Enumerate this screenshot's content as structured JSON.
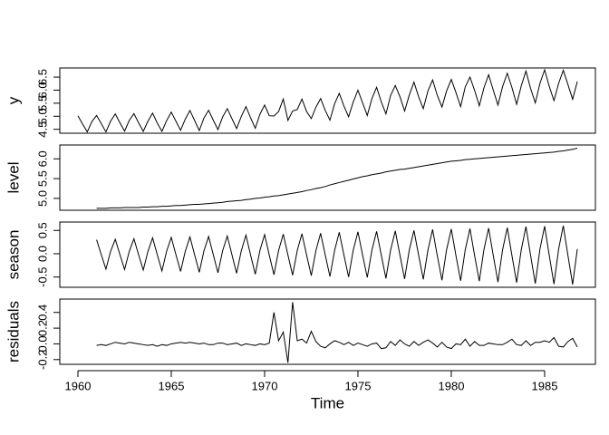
{
  "chart_data": [
    {
      "type": "line",
      "ylabel": "y",
      "color": "#000000",
      "xlim": [
        1959.03,
        1987.72
      ],
      "ylim": [
        4.35,
        6.85
      ],
      "yticks": [
        4.5,
        {
          "value": 5,
          "label": "5.0"
        },
        5.5,
        {
          "value": 6,
          "label": "6.0"
        },
        6.5
      ],
      "x": [
        1960,
        1960.25,
        1960.5,
        1960.75,
        1961,
        1961.25,
        1961.5,
        1961.75,
        1962,
        1962.25,
        1962.5,
        1962.75,
        1963,
        1963.25,
        1963.5,
        1963.75,
        1964,
        1964.25,
        1964.5,
        1964.75,
        1965,
        1965.25,
        1965.5,
        1965.75,
        1966,
        1966.25,
        1966.5,
        1966.75,
        1967,
        1967.25,
        1967.5,
        1967.75,
        1968,
        1968.25,
        1968.5,
        1968.75,
        1969,
        1969.25,
        1969.5,
        1969.75,
        1970,
        1970.25,
        1970.5,
        1970.75,
        1971,
        1971.25,
        1971.5,
        1971.75,
        1972,
        1972.25,
        1972.5,
        1972.75,
        1973,
        1973.25,
        1973.5,
        1973.75,
        1974,
        1974.25,
        1974.5,
        1974.75,
        1975,
        1975.25,
        1975.5,
        1975.75,
        1976,
        1976.25,
        1976.5,
        1976.75,
        1977,
        1977.25,
        1977.5,
        1977.75,
        1978,
        1978.25,
        1978.5,
        1978.75,
        1979,
        1979.25,
        1979.5,
        1979.75,
        1980,
        1980.25,
        1980.5,
        1980.75,
        1981,
        1981.25,
        1981.5,
        1981.75,
        1982,
        1982.25,
        1982.5,
        1982.75,
        1983,
        1983.25,
        1983.5,
        1983.75,
        1984,
        1984.25,
        1984.5,
        1984.75,
        1985,
        1985.25,
        1985.5,
        1985.75,
        1986,
        1986.25,
        1986.5,
        1986.75
      ],
      "values": [
        5.02,
        4.7,
        4.4,
        4.8,
        5.03,
        4.72,
        4.4,
        4.81,
        5.09,
        4.75,
        4.43,
        4.84,
        5.1,
        4.75,
        4.42,
        4.81,
        5.12,
        4.74,
        4.42,
        4.83,
        5.16,
        4.81,
        4.46,
        4.89,
        5.22,
        4.84,
        4.45,
        4.93,
        5.23,
        4.85,
        4.49,
        4.97,
        5.29,
        4.91,
        4.53,
        4.99,
        5.37,
        4.94,
        4.54,
        5.08,
        5.43,
        5.02,
        5.01,
        5.18,
        5.66,
        4.84,
        5.2,
        5.26,
        5.66,
        5.18,
        4.91,
        5.35,
        5.68,
        5.22,
        4.85,
        5.48,
        5.88,
        5.39,
        4.98,
        5.55,
        6.0,
        5.51,
        5.03,
        5.68,
        6.11,
        5.55,
        5.09,
        5.8,
        6.18,
        5.75,
        5.2,
        5.81,
        6.31,
        5.75,
        5.29,
        5.97,
        6.39,
        5.8,
        5.35,
        5.97,
        6.41,
        5.91,
        5.37,
        6.13,
        6.5,
        5.99,
        5.4,
        6.09,
        6.59,
        6.0,
        5.43,
        6.14,
        6.65,
        6.1,
        5.46,
        6.17,
        6.73,
        6.06,
        5.51,
        6.26,
        6.78,
        6.14,
        5.6,
        6.26,
        6.76,
        6.21,
        5.65,
        6.33
      ]
    },
    {
      "type": "line",
      "ylabel": "level",
      "color": "#000000",
      "xlim": [
        1959.03,
        1987.72
      ],
      "ylim": [
        4.7,
        6.35
      ],
      "yticks": [
        {
          "value": 5,
          "label": "5.0"
        },
        5.5,
        {
          "value": 6,
          "label": "6.0"
        }
      ],
      "x": [
        1961,
        1961.25,
        1961.5,
        1961.75,
        1962,
        1962.25,
        1962.5,
        1962.75,
        1963,
        1963.25,
        1963.5,
        1963.75,
        1964,
        1964.25,
        1964.5,
        1964.75,
        1965,
        1965.25,
        1965.5,
        1965.75,
        1966,
        1966.25,
        1966.5,
        1966.75,
        1967,
        1967.25,
        1967.5,
        1967.75,
        1968,
        1968.25,
        1968.5,
        1968.75,
        1969,
        1969.25,
        1969.5,
        1969.75,
        1970,
        1970.25,
        1970.5,
        1970.75,
        1971,
        1971.25,
        1971.5,
        1971.75,
        1972,
        1972.25,
        1972.5,
        1972.75,
        1973,
        1973.25,
        1973.5,
        1973.75,
        1974,
        1974.25,
        1974.5,
        1974.75,
        1975,
        1975.25,
        1975.5,
        1975.75,
        1976,
        1976.25,
        1976.5,
        1976.75,
        1977,
        1977.25,
        1977.5,
        1977.75,
        1978,
        1978.25,
        1978.5,
        1978.75,
        1979,
        1979.25,
        1979.5,
        1979.75,
        1980,
        1980.25,
        1980.5,
        1980.75,
        1981,
        1981.25,
        1981.5,
        1981.75,
        1982,
        1982.25,
        1982.5,
        1982.75,
        1983,
        1983.25,
        1983.5,
        1983.75,
        1984,
        1984.25,
        1984.5,
        1984.75,
        1985,
        1985.25,
        1985.5,
        1985.75,
        1986,
        1986.25,
        1986.5,
        1986.75
      ],
      "values": [
        4.75,
        4.75,
        4.75,
        4.76,
        4.76,
        4.76,
        4.77,
        4.77,
        4.77,
        4.77,
        4.78,
        4.78,
        4.79,
        4.79,
        4.8,
        4.8,
        4.81,
        4.82,
        4.82,
        4.83,
        4.84,
        4.85,
        4.85,
        4.86,
        4.87,
        4.88,
        4.89,
        4.9,
        4.92,
        4.93,
        4.94,
        4.95,
        4.97,
        4.98,
        5.0,
        5.01,
        5.03,
        5.04,
        5.06,
        5.07,
        5.09,
        5.11,
        5.13,
        5.15,
        5.17,
        5.2,
        5.22,
        5.25,
        5.27,
        5.3,
        5.34,
        5.37,
        5.4,
        5.43,
        5.46,
        5.49,
        5.52,
        5.55,
        5.57,
        5.6,
        5.62,
        5.64,
        5.67,
        5.69,
        5.71,
        5.73,
        5.74,
        5.76,
        5.78,
        5.8,
        5.82,
        5.84,
        5.86,
        5.88,
        5.9,
        5.92,
        5.94,
        5.95,
        5.96,
        5.98,
        5.99,
        6.0,
        6.01,
        6.02,
        6.03,
        6.04,
        6.05,
        6.06,
        6.07,
        6.08,
        6.09,
        6.1,
        6.11,
        6.12,
        6.13,
        6.14,
        6.15,
        6.16,
        6.17,
        6.19,
        6.2,
        6.22,
        6.24,
        6.27
      ]
    },
    {
      "type": "line",
      "ylabel": "season",
      "color": "#000000",
      "xlim": [
        1959.03,
        1987.72
      ],
      "ylim": [
        -0.72,
        0.68
      ],
      "yticks": [
        -0.5,
        {
          "value": 0,
          "label": "0.0"
        },
        0.5
      ],
      "x": [
        1961,
        1961.25,
        1961.5,
        1961.75,
        1962,
        1962.25,
        1962.5,
        1962.75,
        1963,
        1963.25,
        1963.5,
        1963.75,
        1964,
        1964.25,
        1964.5,
        1964.75,
        1965,
        1965.25,
        1965.5,
        1965.75,
        1966,
        1966.25,
        1966.5,
        1966.75,
        1967,
        1967.25,
        1967.5,
        1967.75,
        1968,
        1968.25,
        1968.5,
        1968.75,
        1969,
        1969.25,
        1969.5,
        1969.75,
        1970,
        1970.25,
        1970.5,
        1970.75,
        1971,
        1971.25,
        1971.5,
        1971.75,
        1972,
        1972.25,
        1972.5,
        1972.75,
        1973,
        1973.25,
        1973.5,
        1973.75,
        1974,
        1974.25,
        1974.5,
        1974.75,
        1975,
        1975.25,
        1975.5,
        1975.75,
        1976,
        1976.25,
        1976.5,
        1976.75,
        1977,
        1977.25,
        1977.5,
        1977.75,
        1978,
        1978.25,
        1978.5,
        1978.75,
        1979,
        1979.25,
        1979.5,
        1979.75,
        1980,
        1980.25,
        1980.5,
        1980.75,
        1981,
        1981.25,
        1981.5,
        1981.75,
        1982,
        1982.25,
        1982.5,
        1982.75,
        1983,
        1983.25,
        1983.5,
        1983.75,
        1984,
        1984.25,
        1984.5,
        1984.75,
        1985,
        1985.25,
        1985.5,
        1985.75,
        1986,
        1986.25,
        1986.5,
        1986.75
      ],
      "values": [
        0.3,
        -0.02,
        -0.33,
        0.05,
        0.31,
        -0.02,
        -0.34,
        0.05,
        0.32,
        -0.02,
        -0.35,
        0.05,
        0.34,
        -0.02,
        -0.37,
        0.05,
        0.35,
        -0.02,
        -0.38,
        0.05,
        0.36,
        -0.02,
        -0.4,
        0.06,
        0.37,
        -0.02,
        -0.41,
        0.06,
        0.38,
        -0.02,
        -0.42,
        0.06,
        0.4,
        -0.03,
        -0.44,
        0.07,
        0.41,
        -0.03,
        -0.45,
        0.07,
        0.42,
        -0.03,
        -0.46,
        0.07,
        0.43,
        -0.03,
        -0.47,
        0.07,
        0.44,
        -0.03,
        -0.49,
        0.07,
        0.46,
        -0.03,
        -0.5,
        0.08,
        0.47,
        -0.03,
        -0.51,
        0.08,
        0.48,
        -0.03,
        -0.53,
        0.08,
        0.49,
        -0.03,
        -0.54,
        0.08,
        0.5,
        -0.03,
        -0.55,
        0.08,
        0.52,
        -0.04,
        -0.57,
        0.09,
        0.53,
        -0.04,
        -0.58,
        0.09,
        0.54,
        -0.04,
        -0.59,
        0.09,
        0.55,
        -0.04,
        -0.61,
        0.09,
        0.56,
        -0.04,
        -0.62,
        0.09,
        0.58,
        -0.04,
        -0.64,
        0.1,
        0.59,
        -0.04,
        -0.65,
        0.1,
        0.6,
        -0.04,
        -0.66,
        0.1
      ]
    },
    {
      "type": "line",
      "ylabel": "residuals",
      "xlabel": "Time",
      "color": "#000000",
      "xlim": [
        1959.03,
        1987.72
      ],
      "ylim": [
        -0.26,
        0.57
      ],
      "yticks": [
        -0.2,
        {
          "value": 0,
          "label": "0.0"
        },
        0.2,
        0.4
      ],
      "xticks": [
        1960,
        1965,
        1970,
        1975,
        1980,
        1985
      ],
      "x": [
        1961,
        1961.25,
        1961.5,
        1961.75,
        1962,
        1962.25,
        1962.5,
        1962.75,
        1963,
        1963.25,
        1963.5,
        1963.75,
        1964,
        1964.25,
        1964.5,
        1964.75,
        1965,
        1965.25,
        1965.5,
        1965.75,
        1966,
        1966.25,
        1966.5,
        1966.75,
        1967,
        1967.25,
        1967.5,
        1967.75,
        1968,
        1968.25,
        1968.5,
        1968.75,
        1969,
        1969.25,
        1969.5,
        1969.75,
        1970,
        1970.25,
        1970.5,
        1970.75,
        1971,
        1971.25,
        1971.5,
        1971.75,
        1972,
        1972.25,
        1972.5,
        1972.75,
        1973,
        1973.25,
        1973.5,
        1973.75,
        1974,
        1974.25,
        1974.5,
        1974.75,
        1975,
        1975.25,
        1975.5,
        1975.75,
        1976,
        1976.25,
        1976.5,
        1976.75,
        1977,
        1977.25,
        1977.5,
        1977.75,
        1978,
        1978.25,
        1978.5,
        1978.75,
        1979,
        1979.25,
        1979.5,
        1979.75,
        1980,
        1980.25,
        1980.5,
        1980.75,
        1981,
        1981.25,
        1981.5,
        1981.75,
        1982,
        1982.25,
        1982.5,
        1982.75,
        1983,
        1983.25,
        1983.5,
        1983.75,
        1984,
        1984.25,
        1984.5,
        1984.75,
        1985,
        1985.25,
        1985.5,
        1985.75,
        1986,
        1986.25,
        1986.5,
        1986.75
      ],
      "values": [
        -0.02,
        -0.01,
        -0.02,
        0.0,
        0.02,
        0.01,
        0.0,
        0.02,
        0.01,
        0.0,
        -0.01,
        -0.02,
        -0.01,
        -0.03,
        -0.01,
        -0.02,
        0.0,
        0.01,
        0.02,
        0.01,
        0.02,
        0.01,
        0.0,
        0.01,
        -0.01,
        -0.01,
        0.01,
        0.01,
        -0.01,
        0.0,
        0.01,
        -0.02,
        0.0,
        -0.01,
        -0.02,
        0.0,
        -0.01,
        0.01,
        0.4,
        0.04,
        0.15,
        -0.24,
        0.53,
        0.04,
        0.06,
        0.01,
        0.16,
        0.03,
        -0.03,
        -0.05,
        0.0,
        0.04,
        0.02,
        -0.01,
        0.02,
        -0.02,
        0.01,
        -0.01,
        -0.03,
        0.0,
        0.01,
        -0.06,
        -0.05,
        0.03,
        -0.02,
        0.05,
        0.0,
        -0.03,
        0.03,
        -0.02,
        0.02,
        0.05,
        0.01,
        -0.04,
        0.02,
        -0.04,
        -0.06,
        0.0,
        -0.01,
        0.06,
        -0.03,
        0.03,
        -0.02,
        -0.02,
        0.01,
        0.0,
        -0.01,
        -0.01,
        0.02,
        0.06,
        -0.01,
        -0.02,
        0.04,
        -0.02,
        0.02,
        0.02,
        0.04,
        0.02,
        0.08,
        -0.03,
        -0.04,
        0.03,
        0.07,
        -0.04
      ]
    }
  ]
}
